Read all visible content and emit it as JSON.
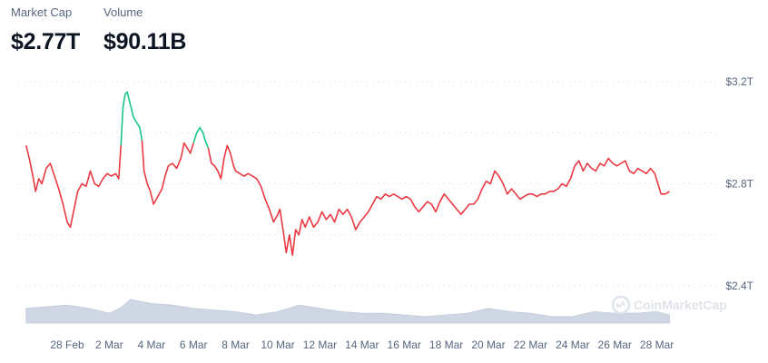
{
  "header": {
    "market_cap_label": "Market Cap",
    "market_cap_value": "$2.77T",
    "volume_label": "Volume",
    "volume_value": "$90.11B"
  },
  "watermark": "CoinMarketCap",
  "colors": {
    "down": "#ea3943",
    "up": "#16c784",
    "volume": "#cfd6e4",
    "grid": "#e7eaf0",
    "label": "#58667e"
  },
  "chart_data": {
    "type": "line",
    "title": "",
    "xlabel": "",
    "ylabel": "",
    "x_tick_labels": [
      "28 Feb",
      "2 Mar",
      "4 Mar",
      "6 Mar",
      "8 Mar",
      "10 Mar",
      "12 Mar",
      "14 Mar",
      "16 Mar",
      "18 Mar",
      "20 Mar",
      "22 Mar",
      "24 Mar",
      "26 Mar",
      "28 Mar"
    ],
    "x_tick_days": [
      0,
      2,
      4,
      6,
      8,
      10,
      12,
      14,
      16,
      18,
      20,
      22,
      24,
      26,
      28
    ],
    "x_range": [
      -1.95,
      28.6
    ],
    "y_tick_labels": [
      "$3.2T",
      "$2.8T",
      "$2.4T"
    ],
    "y_ticks": [
      3.2,
      2.8,
      2.4
    ],
    "ylim": [
      2.3,
      3.25
    ],
    "gridlines": [
      3.2,
      3.0,
      2.8,
      2.6,
      2.4
    ],
    "baseline_reference": 2.95,
    "series": [
      {
        "points": [
          [
            -1.95,
            2.95
          ],
          [
            -1.8,
            2.9
          ],
          [
            -1.65,
            2.84
          ],
          [
            -1.5,
            2.77
          ],
          [
            -1.35,
            2.82
          ],
          [
            -1.2,
            2.8
          ],
          [
            -1.0,
            2.86
          ],
          [
            -0.8,
            2.88
          ],
          [
            -0.6,
            2.83
          ],
          [
            -0.4,
            2.78
          ],
          [
            -0.2,
            2.72
          ],
          [
            0.0,
            2.65
          ],
          [
            0.15,
            2.63
          ],
          [
            0.3,
            2.69
          ],
          [
            0.5,
            2.77
          ],
          [
            0.7,
            2.8
          ],
          [
            0.9,
            2.79
          ],
          [
            1.1,
            2.85
          ],
          [
            1.3,
            2.8
          ],
          [
            1.5,
            2.79
          ],
          [
            1.7,
            2.82
          ],
          [
            1.9,
            2.84
          ],
          [
            2.1,
            2.83
          ],
          [
            2.3,
            2.84
          ],
          [
            2.45,
            2.82
          ],
          [
            2.55,
            2.95
          ],
          [
            2.65,
            3.1
          ],
          [
            2.75,
            3.15
          ],
          [
            2.85,
            3.16
          ],
          [
            3.0,
            3.11
          ],
          [
            3.15,
            3.06
          ],
          [
            3.3,
            3.04
          ],
          [
            3.45,
            3.02
          ],
          [
            3.55,
            2.97
          ],
          [
            3.65,
            2.85
          ],
          [
            3.8,
            2.8
          ],
          [
            3.95,
            2.77
          ],
          [
            4.1,
            2.72
          ],
          [
            4.3,
            2.75
          ],
          [
            4.5,
            2.78
          ],
          [
            4.65,
            2.83
          ],
          [
            4.8,
            2.87
          ],
          [
            5.0,
            2.88
          ],
          [
            5.2,
            2.86
          ],
          [
            5.4,
            2.9
          ],
          [
            5.55,
            2.96
          ],
          [
            5.7,
            2.94
          ],
          [
            5.85,
            2.92
          ],
          [
            6.0,
            2.96
          ],
          [
            6.15,
            3.0
          ],
          [
            6.3,
            3.02
          ],
          [
            6.45,
            3.0
          ],
          [
            6.55,
            2.97
          ],
          [
            6.7,
            2.94
          ],
          [
            6.85,
            2.88
          ],
          [
            7.0,
            2.87
          ],
          [
            7.15,
            2.85
          ],
          [
            7.3,
            2.82
          ],
          [
            7.45,
            2.9
          ],
          [
            7.6,
            2.95
          ],
          [
            7.75,
            2.92
          ],
          [
            7.9,
            2.87
          ],
          [
            8.0,
            2.85
          ],
          [
            8.2,
            2.84
          ],
          [
            8.4,
            2.83
          ],
          [
            8.6,
            2.84
          ],
          [
            8.8,
            2.83
          ],
          [
            9.0,
            2.82
          ],
          [
            9.2,
            2.79
          ],
          [
            9.4,
            2.74
          ],
          [
            9.6,
            2.7
          ],
          [
            9.8,
            2.65
          ],
          [
            10.0,
            2.68
          ],
          [
            10.1,
            2.7
          ],
          [
            10.25,
            2.62
          ],
          [
            10.4,
            2.53
          ],
          [
            10.55,
            2.6
          ],
          [
            10.7,
            2.52
          ],
          [
            10.85,
            2.62
          ],
          [
            11.0,
            2.6
          ],
          [
            11.15,
            2.66
          ],
          [
            11.3,
            2.63
          ],
          [
            11.5,
            2.67
          ],
          [
            11.7,
            2.63
          ],
          [
            11.9,
            2.65
          ],
          [
            12.1,
            2.69
          ],
          [
            12.3,
            2.66
          ],
          [
            12.5,
            2.68
          ],
          [
            12.7,
            2.65
          ],
          [
            12.9,
            2.7
          ],
          [
            13.1,
            2.68
          ],
          [
            13.3,
            2.7
          ],
          [
            13.5,
            2.67
          ],
          [
            13.7,
            2.62
          ],
          [
            13.9,
            2.65
          ],
          [
            14.1,
            2.67
          ],
          [
            14.3,
            2.69
          ],
          [
            14.5,
            2.72
          ],
          [
            14.7,
            2.75
          ],
          [
            14.9,
            2.74
          ],
          [
            15.1,
            2.76
          ],
          [
            15.3,
            2.75
          ],
          [
            15.5,
            2.76
          ],
          [
            15.7,
            2.75
          ],
          [
            15.9,
            2.74
          ],
          [
            16.1,
            2.75
          ],
          [
            16.3,
            2.74
          ],
          [
            16.5,
            2.71
          ],
          [
            16.7,
            2.69
          ],
          [
            16.9,
            2.71
          ],
          [
            17.1,
            2.73
          ],
          [
            17.3,
            2.72
          ],
          [
            17.5,
            2.69
          ],
          [
            17.7,
            2.73
          ],
          [
            17.9,
            2.76
          ],
          [
            18.1,
            2.74
          ],
          [
            18.3,
            2.72
          ],
          [
            18.5,
            2.7
          ],
          [
            18.7,
            2.68
          ],
          [
            18.9,
            2.7
          ],
          [
            19.1,
            2.72
          ],
          [
            19.3,
            2.72
          ],
          [
            19.5,
            2.74
          ],
          [
            19.7,
            2.78
          ],
          [
            19.9,
            2.81
          ],
          [
            20.1,
            2.8
          ],
          [
            20.3,
            2.85
          ],
          [
            20.5,
            2.83
          ],
          [
            20.7,
            2.8
          ],
          [
            20.9,
            2.76
          ],
          [
            21.1,
            2.78
          ],
          [
            21.3,
            2.76
          ],
          [
            21.5,
            2.74
          ],
          [
            21.7,
            2.75
          ],
          [
            21.9,
            2.76
          ],
          [
            22.1,
            2.76
          ],
          [
            22.3,
            2.75
          ],
          [
            22.5,
            2.76
          ],
          [
            22.7,
            2.76
          ],
          [
            22.9,
            2.77
          ],
          [
            23.1,
            2.77
          ],
          [
            23.3,
            2.78
          ],
          [
            23.5,
            2.8
          ],
          [
            23.7,
            2.79
          ],
          [
            23.9,
            2.82
          ],
          [
            24.1,
            2.87
          ],
          [
            24.3,
            2.89
          ],
          [
            24.5,
            2.85
          ],
          [
            24.7,
            2.88
          ],
          [
            24.9,
            2.86
          ],
          [
            25.1,
            2.85
          ],
          [
            25.3,
            2.88
          ],
          [
            25.5,
            2.87
          ],
          [
            25.7,
            2.9
          ],
          [
            25.9,
            2.88
          ],
          [
            26.1,
            2.87
          ],
          [
            26.3,
            2.88
          ],
          [
            26.5,
            2.89
          ],
          [
            26.7,
            2.85
          ],
          [
            26.9,
            2.84
          ],
          [
            27.1,
            2.86
          ],
          [
            27.3,
            2.85
          ],
          [
            27.5,
            2.84
          ],
          [
            27.7,
            2.86
          ],
          [
            27.9,
            2.84
          ],
          [
            28.05,
            2.8
          ],
          [
            28.2,
            2.76
          ],
          [
            28.4,
            2.76
          ],
          [
            28.6,
            2.77
          ]
        ]
      }
    ],
    "volume_series": {
      "x": [
        -1.95,
        -1.0,
        0.0,
        1.0,
        2.0,
        2.5,
        3.0,
        4.0,
        5.0,
        6.0,
        7.0,
        8.0,
        9.0,
        10.0,
        11.0,
        12.0,
        13.0,
        14.0,
        15.0,
        16.0,
        17.0,
        18.0,
        19.0,
        20.0,
        21.0,
        22.0,
        23.0,
        24.0,
        25.0,
        26.0,
        27.0,
        28.0,
        28.6
      ],
      "values": [
        0.45,
        0.5,
        0.55,
        0.45,
        0.3,
        0.45,
        0.72,
        0.6,
        0.55,
        0.45,
        0.4,
        0.35,
        0.25,
        0.35,
        0.55,
        0.45,
        0.35,
        0.3,
        0.3,
        0.25,
        0.2,
        0.25,
        0.3,
        0.45,
        0.35,
        0.3,
        0.2,
        0.2,
        0.35,
        0.3,
        0.3,
        0.35,
        0.25
      ]
    }
  }
}
